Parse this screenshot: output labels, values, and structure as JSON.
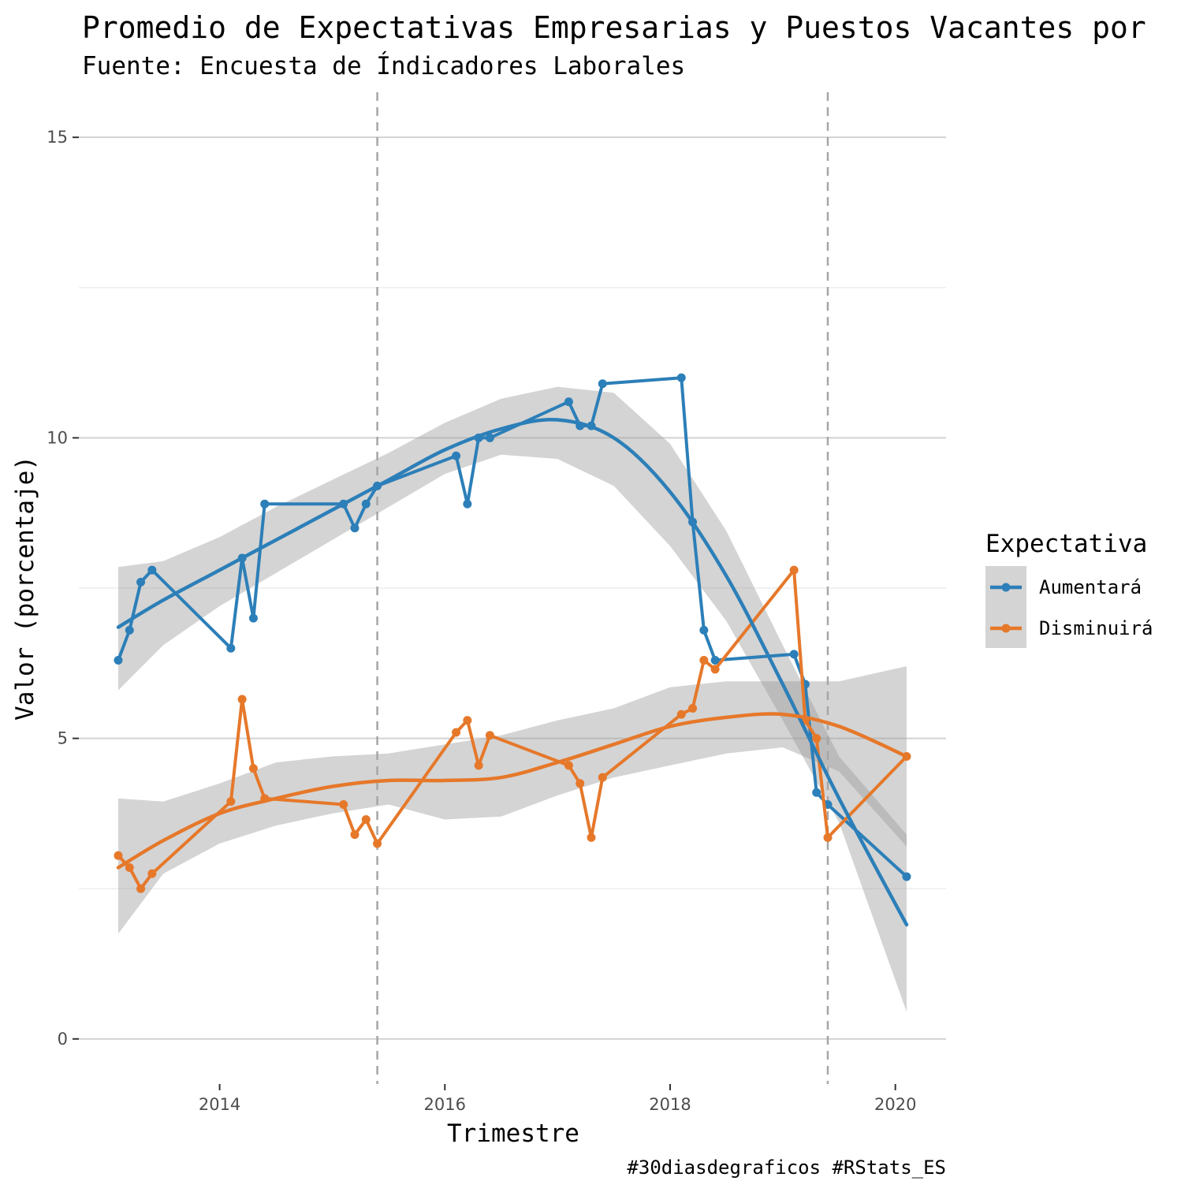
{
  "chart_data": {
    "type": "line",
    "title": "Promedio de Expectativas Empresarias y Puestos Vacantes por",
    "subtitle": "Fuente: Encuesta de Índicadores Laborales",
    "xlabel": "Trimestre",
    "ylabel": "Valor (porcentaje)",
    "caption": "#30diasdegraficos #RStats_ES",
    "xlim": [
      2012.75,
      2020.45
    ],
    "ylim": [
      -0.75,
      15.75
    ],
    "x_ticks": [
      2014,
      2016,
      2018,
      2020
    ],
    "y_ticks": [
      0,
      5,
      10,
      15
    ],
    "vlines": [
      2015.4,
      2019.4
    ],
    "grid": true,
    "legend": {
      "title": "Expectativa",
      "position": "right",
      "entries": [
        "Aumentará",
        "Disminuirá"
      ]
    },
    "series": [
      {
        "name": "Aumentará",
        "color": "#2c7fb8",
        "x": [
          2013.1,
          2013.2,
          2013.3,
          2013.4,
          2014.1,
          2014.2,
          2014.3,
          2014.4,
          2015.1,
          2015.2,
          2015.3,
          2015.4,
          2016.1,
          2016.2,
          2016.3,
          2016.4,
          2017.1,
          2017.2,
          2017.3,
          2017.4,
          2018.1,
          2018.2,
          2018.3,
          2018.4,
          2019.1,
          2019.2,
          2019.3,
          2019.4,
          2020.1
        ],
        "y": [
          6.3,
          6.8,
          7.6,
          7.8,
          6.5,
          8.0,
          7.0,
          8.9,
          8.9,
          8.5,
          8.9,
          9.2,
          9.7,
          8.9,
          10.0,
          10.0,
          10.6,
          10.2,
          10.2,
          10.9,
          11.0,
          8.6,
          6.8,
          6.3,
          6.4,
          5.9,
          4.1,
          3.9,
          2.7
        ],
        "smooth": {
          "x": [
            2013.1,
            2013.5,
            2014.0,
            2014.5,
            2015.0,
            2015.5,
            2016.0,
            2016.5,
            2017.0,
            2017.5,
            2018.0,
            2018.5,
            2019.0,
            2019.5,
            2020.1
          ],
          "y": [
            6.85,
            7.3,
            7.8,
            8.3,
            8.8,
            9.3,
            9.8,
            10.15,
            10.3,
            10.0,
            9.1,
            7.7,
            5.9,
            4.0,
            1.9
          ],
          "lower": [
            5.8,
            6.55,
            7.2,
            7.75,
            8.3,
            8.85,
            9.4,
            9.72,
            9.65,
            9.2,
            8.2,
            6.95,
            5.3,
            3.6,
            0.45
          ],
          "upper": [
            7.85,
            7.95,
            8.35,
            8.85,
            9.3,
            9.75,
            10.25,
            10.65,
            10.85,
            10.75,
            9.9,
            8.45,
            6.55,
            4.7,
            3.4
          ]
        }
      },
      {
        "name": "Disminuirá",
        "color": "#e6782a",
        "x": [
          2013.1,
          2013.2,
          2013.3,
          2013.4,
          2014.1,
          2014.2,
          2014.3,
          2014.4,
          2015.1,
          2015.2,
          2015.3,
          2015.4,
          2016.1,
          2016.2,
          2016.3,
          2016.4,
          2017.1,
          2017.2,
          2017.3,
          2017.4,
          2018.1,
          2018.2,
          2018.3,
          2018.4,
          2019.1,
          2019.2,
          2019.3,
          2019.4,
          2020.1
        ],
        "y": [
          3.05,
          2.85,
          2.5,
          2.75,
          3.95,
          5.65,
          4.5,
          4.0,
          3.9,
          3.4,
          3.65,
          3.25,
          5.1,
          5.3,
          4.55,
          5.05,
          4.55,
          4.25,
          3.35,
          4.35,
          5.4,
          5.5,
          6.3,
          6.15,
          7.8,
          5.3,
          5.0,
          3.35,
          4.7
        ],
        "smooth": {
          "x": [
            2013.1,
            2013.5,
            2014.0,
            2014.5,
            2015.0,
            2015.5,
            2016.0,
            2016.5,
            2017.0,
            2017.5,
            2018.0,
            2018.5,
            2019.0,
            2019.5,
            2020.1
          ],
          "y": [
            2.85,
            3.3,
            3.75,
            4.0,
            4.2,
            4.3,
            4.3,
            4.35,
            4.6,
            4.9,
            5.2,
            5.35,
            5.4,
            5.2,
            4.7
          ],
          "lower": [
            1.75,
            2.75,
            3.25,
            3.55,
            3.75,
            3.9,
            3.65,
            3.7,
            4.05,
            4.35,
            4.55,
            4.75,
            4.85,
            4.45,
            3.2
          ],
          "upper": [
            4.0,
            3.95,
            4.25,
            4.6,
            4.7,
            4.75,
            4.9,
            5.05,
            5.3,
            5.5,
            5.85,
            5.95,
            5.95,
            5.95,
            6.2
          ]
        }
      }
    ]
  }
}
